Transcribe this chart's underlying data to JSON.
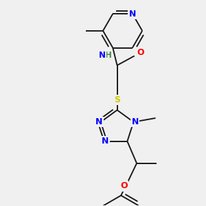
{
  "background_color": "#f0f0f0",
  "bond_color": "#1a1a1a",
  "atom_colors": {
    "N": "#0000ff",
    "O": "#ff0000",
    "S": "#cccc00",
    "C": "#1a1a1a",
    "H": "#4a8a4a"
  },
  "figsize": [
    3.0,
    3.0
  ],
  "dpi": 100
}
